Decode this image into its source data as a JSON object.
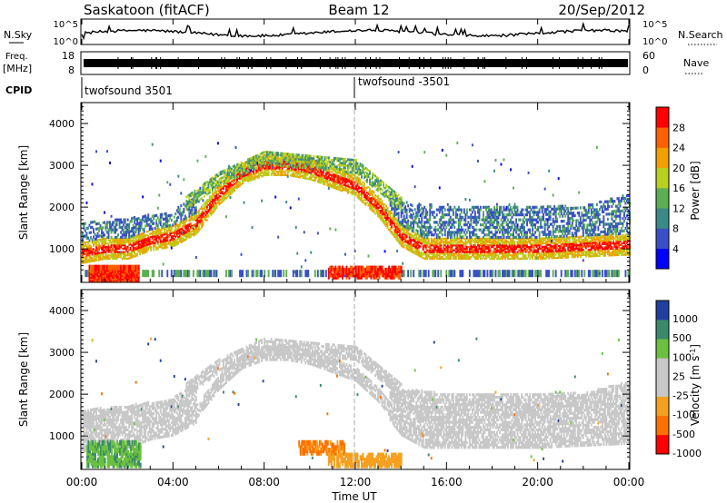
{
  "header": {
    "station": "Saskatoon (fitACF)",
    "beam": "Beam 12",
    "date": "20/Sep/2012"
  },
  "sky_panel": {
    "left_label": "N.Sky",
    "right_label": "N.Search",
    "top_tick": "10^5",
    "bottom_tick": "10^0",
    "series_color": "#000000"
  },
  "freq_panel": {
    "left_label_1": "Freq.",
    "left_label_2": "[MHz]",
    "left_ticks": [
      "18",
      "8"
    ],
    "right_label": "Nave",
    "right_ticks": [
      "60",
      "0"
    ],
    "series_color": "#000000"
  },
  "cpid_panel": {
    "label": "CPID",
    "segments": [
      {
        "name": "twofsound 3501",
        "start_hour": 0
      },
      {
        "name": "twofsound -3501",
        "start_hour": 12
      }
    ]
  },
  "chart_data": [
    {
      "type": "heatmap",
      "ylabel": "Slant Range [km]",
      "y_ticks": [
        "1000",
        "2000",
        "3000",
        "4000"
      ],
      "ylim": [
        200,
        4500
      ],
      "xlim": [
        0,
        24
      ],
      "x_ticks": [
        "00:00",
        "04:00",
        "08:00",
        "12:00",
        "16:00",
        "20:00",
        "00:00"
      ],
      "colorbar": {
        "label": "Power [dB]",
        "ticks": [
          "4",
          "8",
          "12",
          "16",
          "20",
          "24",
          "28"
        ],
        "colors": [
          "#0000ff",
          "#3a4fc8",
          "#3a8a88",
          "#5caf50",
          "#b8d020",
          "#f0a000",
          "#ff6000",
          "#ff0000"
        ]
      },
      "bands": [
        {
          "name": "near",
          "x": [
            0,
            1,
            2,
            2.5,
            3,
            4,
            5,
            6,
            7,
            8,
            9,
            10,
            11,
            12,
            13,
            14,
            15,
            16,
            18,
            20,
            22,
            24
          ],
          "y": [
            900,
            1000,
            1000,
            1100,
            1200,
            1300,
            1600,
            2300,
            2800,
            3000,
            3000,
            2900,
            2700,
            2500,
            2000,
            1300,
            1000,
            1000,
            1000,
            1000,
            1050,
            1100
          ]
        },
        {
          "name": "far",
          "x": [
            0,
            2,
            4,
            6,
            8,
            10,
            12,
            14,
            16,
            18,
            20,
            22,
            24
          ],
          "y": [
            1600,
            1700,
            1900,
            2700,
            3200,
            3100,
            3000,
            2100,
            2000,
            2000,
            2000,
            2000,
            2300
          ]
        }
      ]
    },
    {
      "type": "heatmap",
      "ylabel": "Slant Range [km]",
      "y_ticks": [
        "1000",
        "2000",
        "3000",
        "4000"
      ],
      "ylim": [
        200,
        4500
      ],
      "xlim": [
        0,
        24
      ],
      "xlabel": "Time UT",
      "x_ticks": [
        "00:00",
        "04:00",
        "08:00",
        "12:00",
        "16:00",
        "20:00",
        "00:00"
      ],
      "colorbar": {
        "label": "Velocity [m s^-1]",
        "ticks": [
          "1000",
          "500",
          "100",
          "25",
          "-25",
          "-100",
          "-500",
          "-1000"
        ],
        "colors": [
          "#2040a0",
          "#3a8a6a",
          "#6cc040",
          "#c8c8c8",
          "#c8c8c8",
          "#f5a020",
          "#ff7000",
          "#ff0000"
        ]
      }
    }
  ]
}
